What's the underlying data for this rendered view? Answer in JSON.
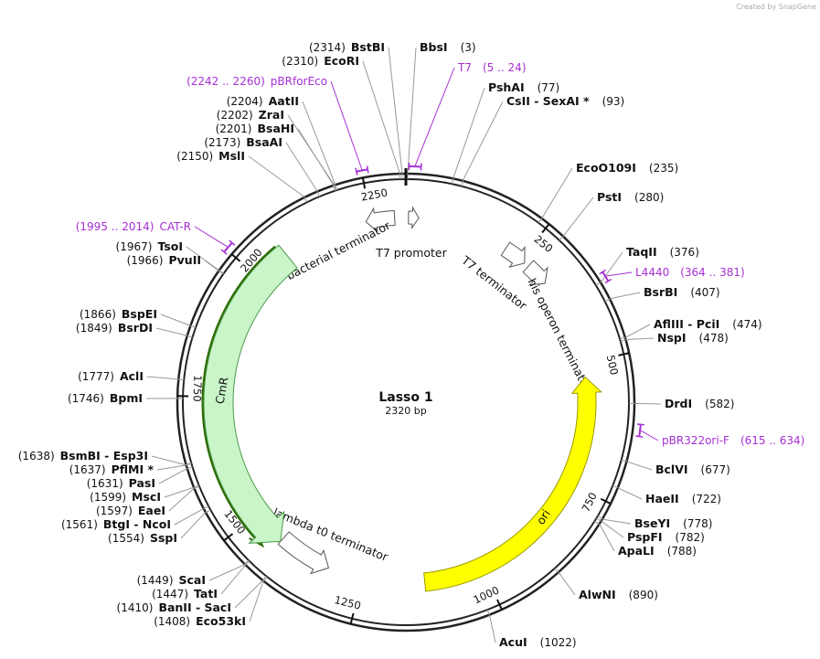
{
  "branding": "Created by SnapGene",
  "map": {
    "name": "Lasso 1",
    "length": "2320 bp",
    "ticks": [
      250,
      500,
      750,
      1000,
      1250,
      1500,
      1750,
      2000,
      2250
    ]
  },
  "features": [
    {
      "label": "bacterial terminator"
    },
    {
      "label": "T7 promoter"
    },
    {
      "label": "T7 terminator"
    },
    {
      "label": "his operon terminator"
    },
    {
      "label": "ori"
    },
    {
      "label": "lambda t0 terminator"
    },
    {
      "label": "CmR"
    }
  ],
  "primers": [
    {
      "name": "T7",
      "site": "(5 .. 24)"
    },
    {
      "name": "pBRforEco",
      "site": "(2242 .. 2260)"
    },
    {
      "name": "CAT-R",
      "site": "(1995 .. 2014)"
    },
    {
      "name": "L4440",
      "site": "(364 .. 381)"
    },
    {
      "name": "pBR322ori-F",
      "site": "(615 .. 634)"
    }
  ],
  "enzymes": [
    {
      "name": "BstBI",
      "site": "(2314)"
    },
    {
      "name": "EcoRI",
      "site": "(2310)"
    },
    {
      "name": "AatII",
      "site": "(2204)"
    },
    {
      "name": "ZraI",
      "site": "(2202)"
    },
    {
      "name": "BsaHI",
      "site": "(2201)"
    },
    {
      "name": "BsaAI",
      "site": "(2173)"
    },
    {
      "name": "MslI",
      "site": "(2150)"
    },
    {
      "name": "TsoI",
      "site": "(1967)"
    },
    {
      "name": "PvuII",
      "site": "(1966)"
    },
    {
      "name": "BspEI",
      "site": "(1866)"
    },
    {
      "name": "BsrDI",
      "site": "(1849)"
    },
    {
      "name": "AclI",
      "site": "(1777)"
    },
    {
      "name": "BpmI",
      "site": "(1746)"
    },
    {
      "name": "BsmBI - Esp3I",
      "site": "(1638)"
    },
    {
      "name": "PflMI *",
      "site": "(1637)"
    },
    {
      "name": "PasI",
      "site": "(1631)"
    },
    {
      "name": "MscI",
      "site": "(1599)"
    },
    {
      "name": "EaeI",
      "site": "(1597)"
    },
    {
      "name": "BtgI - NcoI",
      "site": "(1561)"
    },
    {
      "name": "SspI",
      "site": "(1554)"
    },
    {
      "name": "ScaI",
      "site": "(1449)"
    },
    {
      "name": "TatI",
      "site": "(1447)"
    },
    {
      "name": "BanII - SacI",
      "site": "(1410)"
    },
    {
      "name": "Eco53kI",
      "site": "(1408)"
    },
    {
      "name": "BbsI",
      "site": "(3)"
    },
    {
      "name": "PshAI",
      "site": "(77)"
    },
    {
      "name": "CsII - SexAI *",
      "site": "(93)"
    },
    {
      "name": "EcoO109I",
      "site": "(235)"
    },
    {
      "name": "PstI",
      "site": "(280)"
    },
    {
      "name": "TaqII",
      "site": "(376)"
    },
    {
      "name": "BsrBI",
      "site": "(407)"
    },
    {
      "name": "AflIII - PciI",
      "site": "(474)"
    },
    {
      "name": "NspI",
      "site": "(478)"
    },
    {
      "name": "DrdI",
      "site": "(582)"
    },
    {
      "name": "BclVI",
      "site": "(677)"
    },
    {
      "name": "HaeII",
      "site": "(722)"
    },
    {
      "name": "BseYI",
      "site": "(778)"
    },
    {
      "name": "PspFI",
      "site": "(782)"
    },
    {
      "name": "ApaLI",
      "site": "(788)"
    },
    {
      "name": "AlwNI",
      "site": "(890)"
    },
    {
      "name": "AcuI",
      "site": "(1022)"
    }
  ]
}
